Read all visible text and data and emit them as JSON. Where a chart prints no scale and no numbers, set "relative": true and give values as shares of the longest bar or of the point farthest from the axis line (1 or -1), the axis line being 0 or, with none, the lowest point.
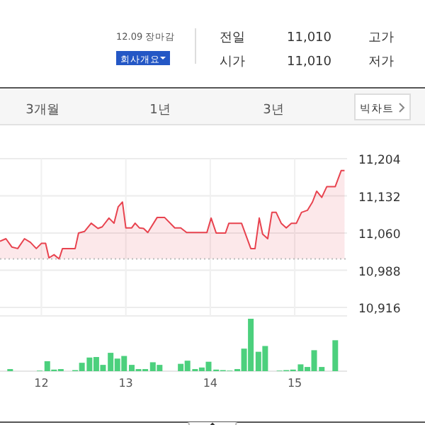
{
  "chart_data": [
    {
      "type": "other",
      "annotations": [
        "12.09 장마감",
        "회사개요",
        "전일",
        "11,010",
        "고가",
        "시가",
        "11,010",
        "저가",
        "3개월",
        "1년",
        "3년",
        "빅차트"
      ]
    },
    {
      "type": "area",
      "color": "#e8434f",
      "tick_labels": "y",
      "grid": true,
      "x": [
        11.51,
        11.58,
        11.65,
        11.72,
        11.8,
        11.87,
        11.94,
        12.0,
        12.05,
        12.09,
        12.15,
        12.21,
        12.25,
        12.4,
        12.44,
        12.51,
        12.59,
        12.67,
        12.72,
        12.8,
        12.86,
        12.91,
        12.96,
        13.0,
        13.07,
        13.11,
        13.16,
        13.21,
        13.26,
        13.37,
        13.46,
        13.58,
        13.65,
        13.72,
        13.96,
        14.01,
        14.07,
        14.18,
        14.22,
        14.37,
        14.48,
        14.53,
        14.58,
        14.62,
        14.68,
        14.73,
        14.78,
        14.84,
        14.9,
        14.96,
        15.02,
        15.08,
        15.15,
        15.21,
        15.26,
        15.32,
        15.38,
        15.48,
        15.55,
        15.59
      ],
      "values": [
        11044,
        11049,
        11033,
        11030,
        11049,
        11042,
        11030,
        11040,
        11040,
        11012,
        11018,
        11010,
        11030,
        11030,
        11060,
        11063,
        11079,
        11069,
        11072,
        11089,
        11079,
        11111,
        11120,
        11070,
        11070,
        11079,
        11070,
        11069,
        11061,
        11090,
        11090,
        11070,
        11070,
        11061,
        11061,
        11089,
        11060,
        11060,
        11079,
        11079,
        11030,
        11030,
        11089,
        11058,
        11049,
        11100,
        11100,
        11079,
        11070,
        11079,
        11079,
        11100,
        11104,
        11120,
        11141,
        11129,
        11150,
        11150,
        11181,
        11181
      ],
      "xlim": [
        11.51,
        15.62
      ],
      "xticks": [
        12,
        13,
        14,
        15
      ],
      "ylim": [
        10916,
        11204
      ],
      "yticks": [
        {
          "value": 10916,
          "label": "10,916"
        },
        {
          "value": 10988,
          "label": "10,988"
        },
        {
          "value": 11060,
          "label": "11,060"
        },
        {
          "value": 11132,
          "label": "11,132"
        },
        {
          "value": 11204,
          "label": "11,204"
        }
      ],
      "ref_lines": [
        {
          "axis": "y",
          "value": 11010,
          "color": "#bbbbbb",
          "line_style": "dotted"
        }
      ]
    },
    {
      "type": "bar",
      "relative": true,
      "color": "#4cd07d",
      "tick_labels": "x",
      "grid": true,
      "x": [
        11.63,
        11.98,
        12.07,
        12.15,
        12.23,
        12.4,
        12.48,
        12.57,
        12.65,
        12.73,
        12.82,
        12.9,
        12.98,
        13.07,
        13.15,
        13.23,
        13.32,
        13.4,
        13.65,
        13.73,
        13.82,
        13.9,
        13.98,
        14.07,
        14.15,
        14.23,
        14.32,
        14.4,
        14.48,
        14.57,
        14.65,
        14.82,
        14.9,
        14.98,
        15.07,
        15.15,
        15.23,
        15.32,
        15.48
      ],
      "values": [
        0.04,
        0.01,
        0.19,
        0.03,
        0.04,
        0.02,
        0.16,
        0.26,
        0.27,
        0.12,
        0.35,
        0.24,
        0.29,
        0.12,
        0.04,
        0.04,
        0.17,
        0.12,
        0.14,
        0.2,
        0.04,
        0.07,
        0.18,
        0.03,
        0.02,
        0.01,
        0.04,
        0.43,
        1,
        0.37,
        0.48,
        0.01,
        0.02,
        0.03,
        0.13,
        0.08,
        0.4,
        0.08,
        0.59
      ],
      "xlim": [
        11.51,
        15.62
      ],
      "xticks": [
        12,
        13,
        14,
        15
      ]
    }
  ]
}
